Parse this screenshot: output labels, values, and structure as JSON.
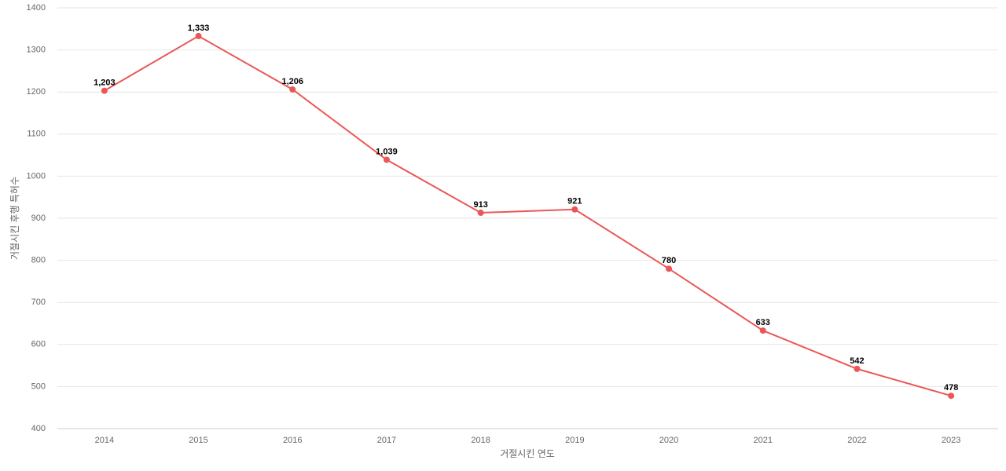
{
  "chart_data": {
    "type": "line",
    "x_label": "거절시킨 연도",
    "y_label": "거절시킨 후행 특허수",
    "categories": [
      "2014",
      "2015",
      "2016",
      "2017",
      "2018",
      "2019",
      "2020",
      "2021",
      "2022",
      "2023"
    ],
    "series": [
      {
        "color": "#eb5757",
        "values": [
          1203,
          1333,
          1206,
          1039,
          913,
          921,
          780,
          633,
          542,
          478
        ],
        "value_labels": [
          "1,203",
          "1,333",
          "1,206",
          "1,039",
          "913",
          "921",
          "780",
          "633",
          "542",
          "478"
        ]
      }
    ],
    "ylim": [
      400,
      1400
    ],
    "yticks": [
      400,
      500,
      600,
      700,
      800,
      900,
      1000,
      1100,
      1200,
      1300,
      1400
    ],
    "grid": true
  }
}
